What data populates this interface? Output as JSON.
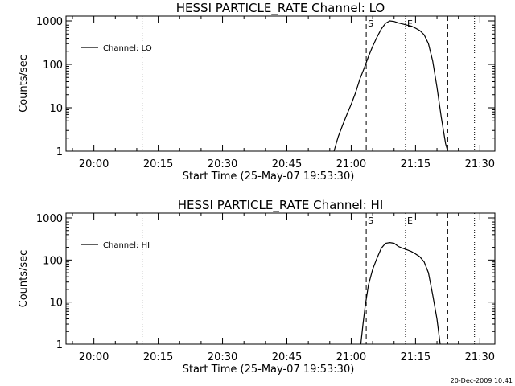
{
  "timestamp": "20-Dec-2009 10:41",
  "chart_data": [
    {
      "type": "line",
      "title": "HESSI PARTICLE_RATE Channel: LO",
      "xlabel": "Start Time (25-May-07 19:53:30)",
      "ylabel": "Counts/sec",
      "y_scale": "log",
      "ylim": [
        1,
        1000
      ],
      "xlim": [
        "19:53:30",
        "21:33:30"
      ],
      "x_ticks": [
        "20:00",
        "20:15",
        "20:30",
        "20:45",
        "21:00",
        "21:15",
        "21:30"
      ],
      "y_ticks": [
        "1",
        "10",
        "100",
        "1000"
      ],
      "series": [
        {
          "name": "Channel: LO",
          "color": "#000000",
          "points": [
            [
              "20:56:00",
              1
            ],
            [
              "20:56:30",
              1.5
            ],
            [
              "20:57:00",
              2.2
            ],
            [
              "20:58:00",
              4
            ],
            [
              "20:59:00",
              7
            ],
            [
              "21:00:00",
              12
            ],
            [
              "21:01:00",
              22
            ],
            [
              "21:02:00",
              45
            ],
            [
              "21:03:00",
              80
            ],
            [
              "21:04:00",
              150
            ],
            [
              "21:05:00",
              260
            ],
            [
              "21:06:00",
              420
            ],
            [
              "21:07:00",
              650
            ],
            [
              "21:08:00",
              880
            ],
            [
              "21:09:00",
              1000
            ],
            [
              "21:10:00",
              970
            ],
            [
              "21:11:00",
              900
            ],
            [
              "21:12:00",
              850
            ],
            [
              "21:13:00",
              800
            ],
            [
              "21:14:00",
              760
            ],
            [
              "21:15:00",
              680
            ],
            [
              "21:16:00",
              600
            ],
            [
              "21:17:00",
              480
            ],
            [
              "21:18:00",
              300
            ],
            [
              "21:19:00",
              120
            ],
            [
              "21:20:00",
              30
            ],
            [
              "21:21:00",
              6
            ],
            [
              "21:22:00",
              1.5
            ],
            [
              "21:22:30",
              1
            ]
          ]
        }
      ],
      "vlines": [
        {
          "time": "20:11:15",
          "style": "dotted",
          "label": ""
        },
        {
          "time": "21:03:30",
          "style": "dashed",
          "label": "S"
        },
        {
          "time": "21:12:40",
          "style": "dotted",
          "label": "E"
        },
        {
          "time": "21:22:30",
          "style": "dashed",
          "label": ""
        },
        {
          "time": "21:28:45",
          "style": "dotted",
          "label": ""
        }
      ],
      "legend": "top-left",
      "grid": false
    },
    {
      "type": "line",
      "title": "HESSI PARTICLE_RATE Channel: HI",
      "xlabel": "Start Time (25-May-07 19:53:30)",
      "ylabel": "Counts/sec",
      "y_scale": "log",
      "ylim": [
        1,
        1000
      ],
      "xlim": [
        "19:53:30",
        "21:33:30"
      ],
      "x_ticks": [
        "20:00",
        "20:15",
        "20:30",
        "20:45",
        "21:00",
        "21:15",
        "21:30"
      ],
      "y_ticks": [
        "1",
        "10",
        "100",
        "1000"
      ],
      "series": [
        {
          "name": "Channel: HI",
          "color": "#000000",
          "points": [
            [
              "21:02:15",
              1
            ],
            [
              "21:02:45",
              3
            ],
            [
              "21:03:15",
              8
            ],
            [
              "21:04:00",
              25
            ],
            [
              "21:05:00",
              60
            ],
            [
              "21:06:00",
              110
            ],
            [
              "21:07:00",
              190
            ],
            [
              "21:08:00",
              250
            ],
            [
              "21:09:00",
              260
            ],
            [
              "21:10:00",
              250
            ],
            [
              "21:11:00",
              210
            ],
            [
              "21:12:00",
              190
            ],
            [
              "21:13:00",
              175
            ],
            [
              "21:14:00",
              160
            ],
            [
              "21:15:00",
              140
            ],
            [
              "21:16:00",
              120
            ],
            [
              "21:17:00",
              90
            ],
            [
              "21:18:00",
              50
            ],
            [
              "21:19:00",
              15
            ],
            [
              "21:20:00",
              4
            ],
            [
              "21:20:45",
              1
            ]
          ]
        }
      ],
      "vlines": [
        {
          "time": "20:11:15",
          "style": "dotted",
          "label": ""
        },
        {
          "time": "21:03:30",
          "style": "dashed",
          "label": "S"
        },
        {
          "time": "21:12:40",
          "style": "dotted",
          "label": "E"
        },
        {
          "time": "21:22:30",
          "style": "dashed",
          "label": ""
        },
        {
          "time": "21:28:45",
          "style": "dotted",
          "label": ""
        }
      ],
      "legend": "top-left",
      "grid": false
    }
  ]
}
